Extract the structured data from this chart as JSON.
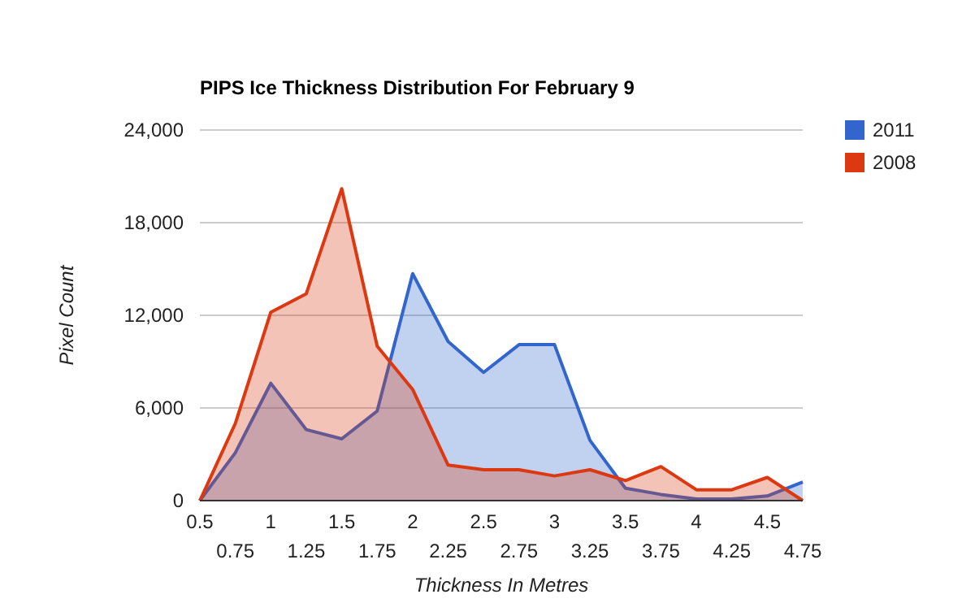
{
  "chart_data": {
    "type": "area",
    "title": "PIPS Ice Thickness Distribution For February 9",
    "xlabel": "Thickness In Metres",
    "ylabel": "Pixel Count",
    "categories": [
      "0.5",
      "0.75",
      "1",
      "1.25",
      "1.5",
      "1.75",
      "2",
      "2.25",
      "2.5",
      "2.75",
      "3",
      "3.25",
      "3.5",
      "3.75",
      "4",
      "4.25",
      "4.5",
      "4.75"
    ],
    "series": [
      {
        "name": "2011",
        "color": "#3366cc",
        "values": [
          0,
          3100,
          7600,
          4600,
          4000,
          5800,
          14700,
          10300,
          8300,
          10100,
          10100,
          3900,
          800,
          400,
          100,
          100,
          300,
          1200
        ]
      },
      {
        "name": "2008",
        "color": "#dc3912",
        "values": [
          0,
          5000,
          12200,
          13400,
          20200,
          10000,
          7200,
          2300,
          2000,
          2000,
          1600,
          2000,
          1300,
          2200,
          700,
          700,
          1500,
          0
        ]
      }
    ],
    "ylim": [
      0,
      24000
    ],
    "yticks": [
      {
        "value": 0,
        "label": "0"
      },
      {
        "value": 6000,
        "label": "6,000"
      },
      {
        "value": 12000,
        "label": "12,000"
      },
      {
        "value": 18000,
        "label": "18,000"
      },
      {
        "value": 24000,
        "label": "24,000"
      }
    ],
    "grid": "y",
    "legend": "right"
  }
}
